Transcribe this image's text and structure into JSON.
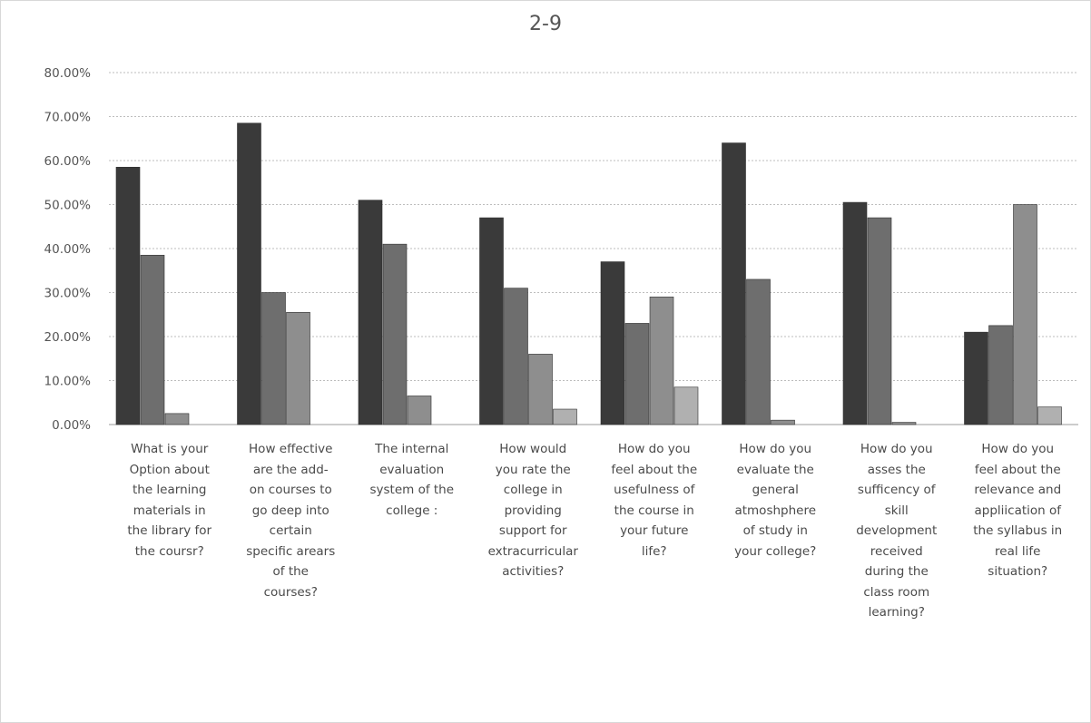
{
  "chart_data": {
    "type": "bar",
    "title": "2-9",
    "xlabel": "",
    "ylabel": "",
    "ylim": [
      0,
      80
    ],
    "y_ticks": [
      "0.00%",
      "10.00%",
      "20.00%",
      "30.00%",
      "40.00%",
      "50.00%",
      "60.00%",
      "70.00%",
      "80.00%"
    ],
    "grid": true,
    "legend": "none",
    "categories": [
      "What is your Option about the learning materials in the library for the coursr?",
      "How effective are the add-on courses to go deep into certain specific arears of the courses?",
      "The internal evaluation system of the college :",
      "How would you rate the college in providing support for extracurricular activities?",
      "How do you feel about the usefulness of the course in your future life?",
      "How do you evaluate the general atmoshphere of study in your college?",
      "How do you asses the sufficency of skill development received during the class room learning?",
      "How do you feel about the relevance and appliication of the syllabus in real life situation?"
    ],
    "series": [
      {
        "values": [
          58.5,
          68.5,
          51.0,
          47.0,
          37.0,
          64.0,
          50.5,
          21.0
        ],
        "color": "#3a3a3a"
      },
      {
        "values": [
          38.5,
          30.0,
          41.0,
          31.0,
          23.0,
          33.0,
          47.0,
          22.5
        ],
        "color": "#6e6e6e"
      },
      {
        "values": [
          2.5,
          25.5,
          6.5,
          16.0,
          29.0,
          1.0,
          0.5,
          50.0
        ],
        "color": "#8e8e8e"
      },
      {
        "values": [
          0,
          0,
          0,
          3.5,
          8.5,
          0,
          0,
          4.0
        ],
        "color": "#b0b0b0"
      }
    ]
  },
  "category_label_lines": [
    "What is your\nOption about\nthe learning\nmaterials in\nthe library for\nthe coursr?",
    "How effective\nare the add-\non courses to\ngo deep into\ncertain\nspecific arears\nof the\ncourses?",
    "The internal\nevaluation\nsystem of the\ncollege :",
    "How would\nyou rate the\ncollege in\nproviding\nsupport for\nextracurricular\nactivities?",
    "How do you\nfeel about the\nusefulness of\nthe course in\nyour future\nlife?",
    "How do you\nevaluate the\ngeneral\natmoshphere\nof study in\nyour college?",
    "How do you\nasses the\nsufficency of\nskill\ndevelopment\nreceived\nduring the\nclass room\nlearning?",
    "How do you\nfeel about the\nrelevance and\nappliication of\nthe syllabus in\nreal life\nsituation?"
  ]
}
